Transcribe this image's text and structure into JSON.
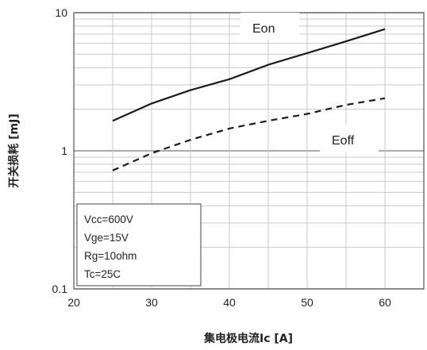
{
  "chart_data": {
    "type": "line",
    "x_scale": "linear",
    "y_scale": "log",
    "xlim": [
      20,
      65
    ],
    "ylim": [
      0.1,
      10
    ],
    "x_ticks": [
      "20",
      "30",
      "40",
      "50",
      "60"
    ],
    "y_ticks": [
      "10",
      "1",
      "0.1"
    ],
    "xlabel": "集电极电流Ic [A]",
    "ylabel": "开关损耗 [mJ]",
    "grid": true,
    "series": [
      {
        "name": "Eon",
        "style": "solid",
        "color": "#1a1a1a",
        "x": [
          25,
          30,
          35,
          40,
          45,
          50,
          55,
          60
        ],
        "y": [
          1.65,
          2.2,
          2.75,
          3.3,
          4.2,
          5.1,
          6.2,
          7.6
        ]
      },
      {
        "name": "Eoff",
        "style": "dashed",
        "color": "#1a1a1a",
        "x": [
          25,
          30,
          35,
          40,
          45,
          50,
          55,
          60
        ],
        "y": [
          0.72,
          0.96,
          1.2,
          1.45,
          1.65,
          1.85,
          2.15,
          2.4
        ]
      }
    ],
    "conditions": [
      "Vcc=600V",
      "Vge=15V",
      "Rg=10ohm",
      "Tc=25C"
    ]
  }
}
